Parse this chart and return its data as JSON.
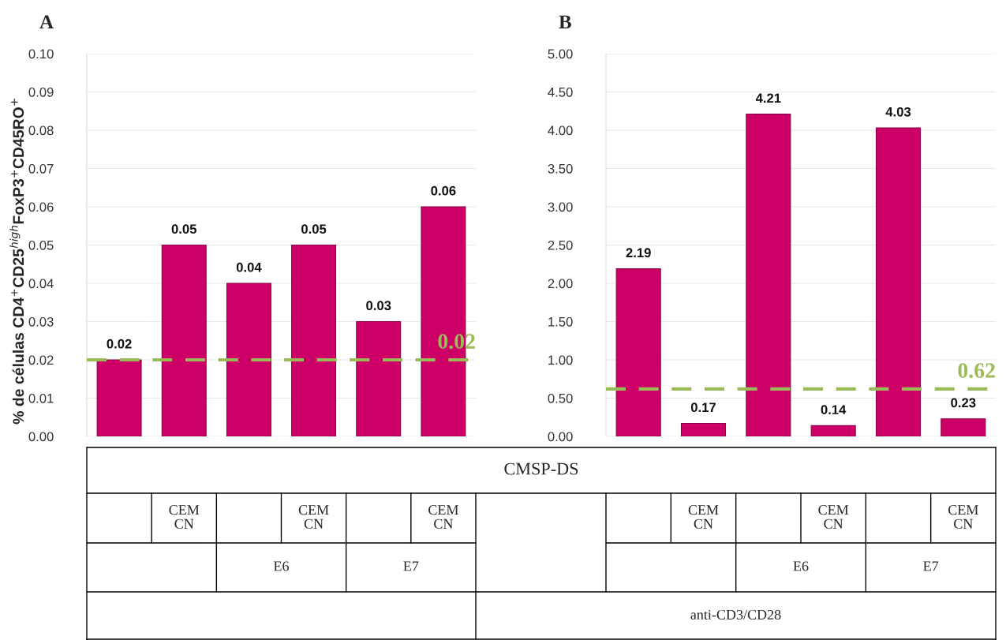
{
  "chart_data": [
    {
      "type": "bar",
      "title": "A",
      "ylabel": "% de células CD4$^{+}$CD25$^{high}$FoxP3$^{+}$CD45RO$^{+}$",
      "categories": [
        null,
        "CEM CN",
        null,
        "CEM CN",
        null,
        "CEM CN"
      ],
      "values": [
        0.02,
        0.05,
        0.04,
        0.05,
        0.03,
        0.06
      ],
      "color": "#cc0066",
      "data_labels": true,
      "ylim": [
        0,
        0.1
      ],
      "yticks": [
        {
          "value": 0,
          "label": "0.00"
        },
        0.01,
        0.02,
        0.03,
        0.04,
        0.05,
        0.06,
        0.07,
        0.08,
        0.09,
        {
          "value": 0.1,
          "label": "0.10"
        }
      ],
      "grid": "y",
      "ref_lines": [
        {
          "axis": "y",
          "value": 0.02,
          "label": "0.02",
          "color": "#9bbb59",
          "line_style": "dashed"
        }
      ],
      "annotations": [
        "CMSP-DS",
        "E6",
        "E7"
      ]
    },
    {
      "type": "bar",
      "title": "B",
      "categories": [
        null,
        "CEM CN",
        null,
        "CEM CN",
        null,
        "CEM CN"
      ],
      "values": [
        2.19,
        0.17,
        4.21,
        0.14,
        4.03,
        0.23
      ],
      "color": "#cc0066",
      "data_labels": true,
      "ylim": [
        0,
        5
      ],
      "yticks": [
        {
          "value": 0,
          "label": "0.00"
        },
        {
          "value": 0.5,
          "label": "0.50"
        },
        {
          "value": 1,
          "label": "1.00"
        },
        {
          "value": 1.5,
          "label": "1.50"
        },
        {
          "value": 2,
          "label": "2.00"
        },
        {
          "value": 2.5,
          "label": "2.50"
        },
        {
          "value": 3,
          "label": "3.00"
        },
        {
          "value": 3.5,
          "label": "3.50"
        },
        {
          "value": 4,
          "label": "4.00"
        },
        {
          "value": 4.5,
          "label": "4.50"
        },
        {
          "value": 5,
          "label": "5.00"
        }
      ],
      "grid": "y",
      "ref_lines": [
        {
          "axis": "y",
          "value": 0.62,
          "label": "0.62",
          "color": "#9bbb59",
          "line_style": "dashed"
        }
      ],
      "annotations": [
        "E6",
        "E7",
        "anti-CD3/CD28"
      ]
    }
  ]
}
